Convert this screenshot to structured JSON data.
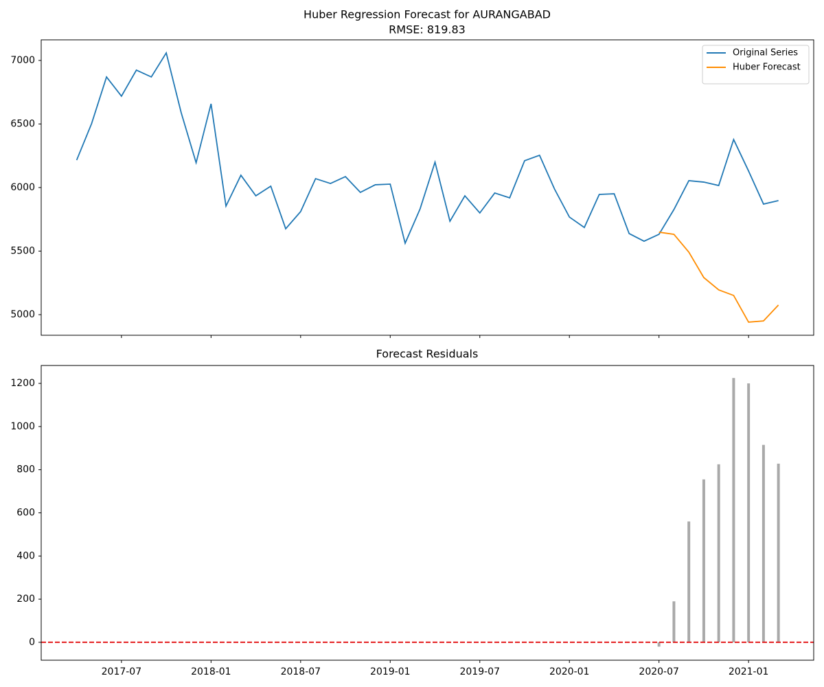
{
  "chart_data": [
    {
      "type": "line",
      "title": "Huber Regression Forecast for AURANGABAD",
      "subtitle": "RMSE: 819.83",
      "xlim": [
        "2017-01-20",
        "2021-05-12"
      ],
      "xticks": [
        "2017-07",
        "2018-01",
        "2018-07",
        "2019-01",
        "2019-07",
        "2020-01",
        "2020-07",
        "2021-01"
      ],
      "ylim": [
        4838,
        7162
      ],
      "yticks": [
        5000,
        5500,
        6000,
        6500,
        7000
      ],
      "legend": "upper right",
      "series": [
        {
          "name": "Original Series",
          "color": "#1f77b4",
          "x": [
            "2017-04",
            "2017-05",
            "2017-06",
            "2017-07",
            "2017-08",
            "2017-09",
            "2017-10",
            "2017-11",
            "2017-12",
            "2018-01",
            "2018-02",
            "2018-03",
            "2018-04",
            "2018-05",
            "2018-06",
            "2018-07",
            "2018-08",
            "2018-09",
            "2018-10",
            "2018-11",
            "2018-12",
            "2019-01",
            "2019-02",
            "2019-03",
            "2019-04",
            "2019-05",
            "2019-06",
            "2019-07",
            "2019-08",
            "2019-09",
            "2019-10",
            "2019-11",
            "2019-12",
            "2020-01",
            "2020-02",
            "2020-03",
            "2020-04",
            "2020-05",
            "2020-06",
            "2020-07",
            "2020-08",
            "2020-09",
            "2020-10",
            "2020-11",
            "2020-12",
            "2021-01",
            "2021-02",
            "2021-03"
          ],
          "values": [
            6216,
            6503,
            6870,
            6719,
            6924,
            6870,
            7059,
            6589,
            6195,
            6659,
            5854,
            6097,
            5935,
            6011,
            5676,
            5811,
            6070,
            6032,
            6086,
            5962,
            6022,
            6027,
            5562,
            5832,
            6200,
            5735,
            5935,
            5800,
            5957,
            5919,
            6211,
            6254,
            5989,
            5768,
            5686,
            5946,
            5951,
            5638,
            5578,
            5632,
            5827,
            6054,
            6043,
            6016,
            6378,
            6130,
            5870,
            5897
          ]
        },
        {
          "name": "Huber Forecast",
          "color": "#ff8c00",
          "x": [
            "2020-07",
            "2020-08",
            "2020-09",
            "2020-10",
            "2020-11",
            "2020-12",
            "2021-01",
            "2021-02",
            "2021-03"
          ],
          "values": [
            5649,
            5632,
            5492,
            5292,
            5195,
            5151,
            4941,
            4951,
            5076
          ]
        }
      ]
    },
    {
      "type": "bar",
      "title": "Forecast Residuals",
      "xlim": [
        "2017-01-20",
        "2021-05-12"
      ],
      "xticks": [
        "2017-07",
        "2018-01",
        "2018-07",
        "2019-01",
        "2019-07",
        "2020-01",
        "2020-07",
        "2021-01"
      ],
      "ylim": [
        -83,
        1283
      ],
      "yticks": [
        0,
        200,
        400,
        600,
        800,
        1000,
        1200
      ],
      "color": "#a9a9a9",
      "x": [
        "2020-07",
        "2020-08",
        "2020-09",
        "2020-10",
        "2020-11",
        "2020-12",
        "2021-01",
        "2021-02",
        "2021-03"
      ],
      "values": [
        -20,
        190,
        560,
        755,
        825,
        1225,
        1200,
        915,
        828
      ],
      "reference_line": {
        "value": 0,
        "color": "#e41a1c",
        "style": "dashed"
      }
    }
  ]
}
